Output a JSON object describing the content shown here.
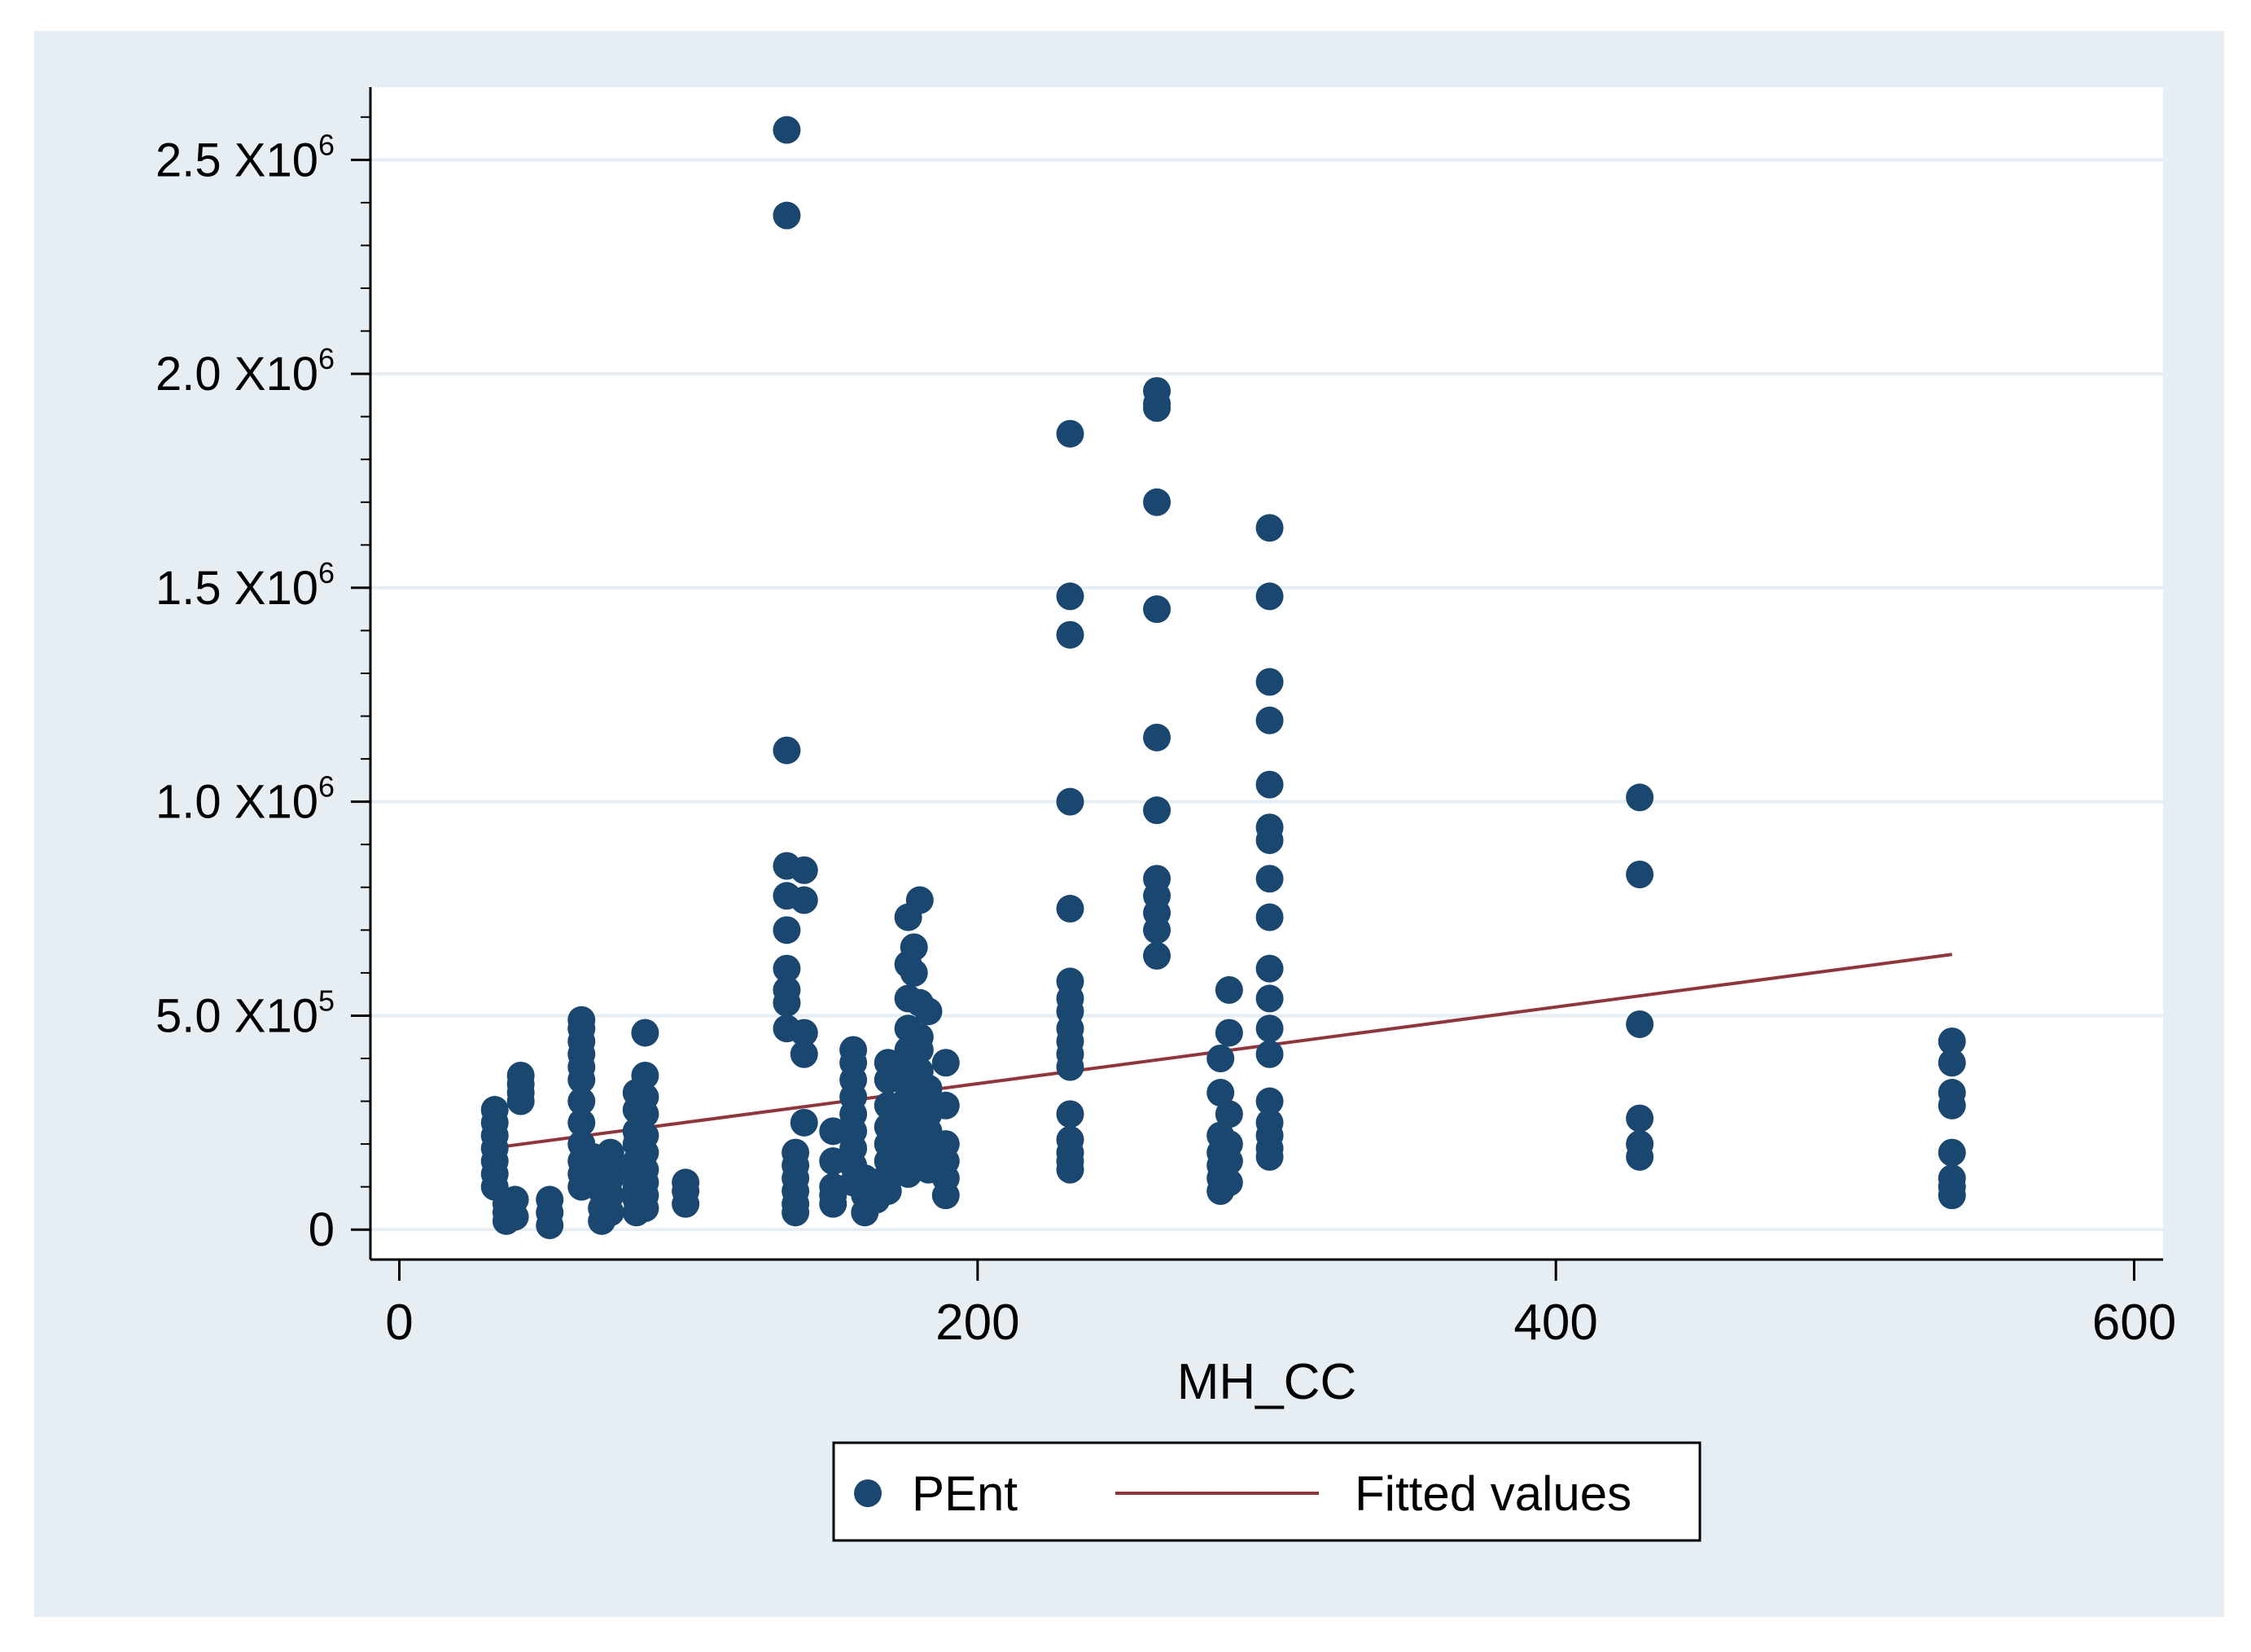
{
  "colors": {
    "outer_background": "#e7eef3",
    "plot_background": "#ffffff",
    "gridline": "#e7eef3",
    "marker": "#1a476f",
    "fitted_line": "#90353b",
    "axis": "#000000"
  },
  "chart_data": {
    "type": "scatter",
    "title": "",
    "xlabel": "MH_CC",
    "ylabel": "",
    "xlim": [
      -10,
      610
    ],
    "ylim": [
      -70000,
      2670000
    ],
    "grid": true,
    "legend_position": "bottom",
    "x_ticks": [
      {
        "value": 0,
        "label": "0"
      },
      {
        "value": 200,
        "label": "200"
      },
      {
        "value": 400,
        "label": "400"
      },
      {
        "value": 600,
        "label": "600"
      }
    ],
    "y_ticks": [
      {
        "value": 0,
        "label": "0",
        "exp": ""
      },
      {
        "value": 500000,
        "label": "5.0 X10",
        "exp": "5"
      },
      {
        "value": 1000000,
        "label": "1.0 X10",
        "exp": "6"
      },
      {
        "value": 1500000,
        "label": "1.5 X10",
        "exp": "6"
      },
      {
        "value": 2000000,
        "label": "2.0 X10",
        "exp": "6"
      },
      {
        "value": 2500000,
        "label": "2.5 X10",
        "exp": "6"
      }
    ],
    "y_minor_step": 100000,
    "legend": [
      {
        "name": "PEnt",
        "kind": "marker"
      },
      {
        "name": "Fitted values",
        "kind": "line"
      }
    ],
    "series": [
      {
        "name": "PEnt",
        "type": "scatter",
        "points": [
          [
            33,
            280000
          ],
          [
            33,
            250000
          ],
          [
            33,
            220000
          ],
          [
            33,
            190000
          ],
          [
            33,
            160000
          ],
          [
            33,
            130000
          ],
          [
            33,
            100000
          ],
          [
            37,
            60000
          ],
          [
            37,
            40000
          ],
          [
            37,
            20000
          ],
          [
            40,
            70000
          ],
          [
            40,
            30000
          ],
          [
            42,
            360000
          ],
          [
            42,
            340000
          ],
          [
            42,
            320000
          ],
          [
            42,
            300000
          ],
          [
            52,
            70000
          ],
          [
            52,
            40000
          ],
          [
            52,
            10000
          ],
          [
            63,
            490000
          ],
          [
            63,
            470000
          ],
          [
            63,
            440000
          ],
          [
            63,
            410000
          ],
          [
            63,
            380000
          ],
          [
            63,
            350000
          ],
          [
            63,
            300000
          ],
          [
            63,
            250000
          ],
          [
            63,
            200000
          ],
          [
            63,
            160000
          ],
          [
            63,
            130000
          ],
          [
            63,
            100000
          ],
          [
            67,
            170000
          ],
          [
            67,
            140000
          ],
          [
            67,
            110000
          ],
          [
            70,
            130000
          ],
          [
            70,
            90000
          ],
          [
            70,
            50000
          ],
          [
            70,
            20000
          ],
          [
            73,
            180000
          ],
          [
            73,
            150000
          ],
          [
            73,
            120000
          ],
          [
            73,
            80000
          ],
          [
            73,
            40000
          ],
          [
            82,
            320000
          ],
          [
            82,
            280000
          ],
          [
            82,
            230000
          ],
          [
            82,
            200000
          ],
          [
            82,
            160000
          ],
          [
            82,
            130000
          ],
          [
            82,
            100000
          ],
          [
            82,
            70000
          ],
          [
            82,
            40000
          ],
          [
            85,
            460000
          ],
          [
            85,
            360000
          ],
          [
            85,
            310000
          ],
          [
            85,
            270000
          ],
          [
            85,
            220000
          ],
          [
            85,
            180000
          ],
          [
            85,
            140000
          ],
          [
            85,
            110000
          ],
          [
            85,
            80000
          ],
          [
            85,
            50000
          ],
          [
            99,
            110000
          ],
          [
            99,
            90000
          ],
          [
            99,
            60000
          ],
          [
            134,
            2570000
          ],
          [
            134,
            2370000
          ],
          [
            134,
            1120000
          ],
          [
            134,
            850000
          ],
          [
            134,
            780000
          ],
          [
            134,
            700000
          ],
          [
            134,
            610000
          ],
          [
            134,
            560000
          ],
          [
            134,
            530000
          ],
          [
            134,
            470000
          ],
          [
            137,
            180000
          ],
          [
            137,
            150000
          ],
          [
            137,
            120000
          ],
          [
            137,
            90000
          ],
          [
            137,
            60000
          ],
          [
            137,
            40000
          ],
          [
            140,
            840000
          ],
          [
            140,
            770000
          ],
          [
            140,
            460000
          ],
          [
            140,
            410000
          ],
          [
            140,
            250000
          ],
          [
            150,
            230000
          ],
          [
            150,
            160000
          ],
          [
            150,
            100000
          ],
          [
            150,
            80000
          ],
          [
            150,
            60000
          ],
          [
            157,
            420000
          ],
          [
            157,
            390000
          ],
          [
            157,
            350000
          ],
          [
            157,
            310000
          ],
          [
            157,
            270000
          ],
          [
            157,
            230000
          ],
          [
            157,
            190000
          ],
          [
            157,
            150000
          ],
          [
            157,
            110000
          ],
          [
            161,
            120000
          ],
          [
            161,
            80000
          ],
          [
            161,
            40000
          ],
          [
            165,
            110000
          ],
          [
            165,
            70000
          ],
          [
            169,
            390000
          ],
          [
            169,
            350000
          ],
          [
            169,
            290000
          ],
          [
            169,
            240000
          ],
          [
            169,
            200000
          ],
          [
            169,
            160000
          ],
          [
            169,
            120000
          ],
          [
            169,
            90000
          ],
          [
            176,
            730000
          ],
          [
            176,
            620000
          ],
          [
            176,
            540000
          ],
          [
            176,
            470000
          ],
          [
            176,
            420000
          ],
          [
            176,
            360000
          ],
          [
            176,
            310000
          ],
          [
            176,
            260000
          ],
          [
            176,
            210000
          ],
          [
            176,
            170000
          ],
          [
            176,
            130000
          ],
          [
            178,
            660000
          ],
          [
            178,
            600000
          ],
          [
            178,
            430000
          ],
          [
            178,
            390000
          ],
          [
            178,
            340000
          ],
          [
            180,
            770000
          ],
          [
            180,
            530000
          ],
          [
            180,
            450000
          ],
          [
            180,
            420000
          ],
          [
            180,
            370000
          ],
          [
            180,
            290000
          ],
          [
            180,
            240000
          ],
          [
            180,
            200000
          ],
          [
            180,
            150000
          ],
          [
            183,
            510000
          ],
          [
            183,
            330000
          ],
          [
            183,
            270000
          ],
          [
            183,
            230000
          ],
          [
            183,
            180000
          ],
          [
            183,
            140000
          ],
          [
            189,
            390000
          ],
          [
            189,
            290000
          ],
          [
            189,
            200000
          ],
          [
            189,
            160000
          ],
          [
            189,
            120000
          ],
          [
            189,
            80000
          ],
          [
            232,
            1860000
          ],
          [
            232,
            1480000
          ],
          [
            232,
            1390000
          ],
          [
            232,
            1000000
          ],
          [
            232,
            750000
          ],
          [
            232,
            580000
          ],
          [
            232,
            540000
          ],
          [
            232,
            510000
          ],
          [
            232,
            470000
          ],
          [
            232,
            440000
          ],
          [
            232,
            410000
          ],
          [
            232,
            380000
          ],
          [
            232,
            270000
          ],
          [
            232,
            210000
          ],
          [
            232,
            180000
          ],
          [
            232,
            160000
          ],
          [
            232,
            140000
          ],
          [
            262,
            1960000
          ],
          [
            262,
            1930000
          ],
          [
            262,
            1920000
          ],
          [
            262,
            1700000
          ],
          [
            262,
            1450000
          ],
          [
            262,
            1150000
          ],
          [
            262,
            980000
          ],
          [
            262,
            820000
          ],
          [
            262,
            780000
          ],
          [
            262,
            740000
          ],
          [
            262,
            700000
          ],
          [
            262,
            640000
          ],
          [
            284,
            400000
          ],
          [
            284,
            320000
          ],
          [
            284,
            220000
          ],
          [
            284,
            180000
          ],
          [
            284,
            150000
          ],
          [
            284,
            120000
          ],
          [
            284,
            90000
          ],
          [
            287,
            560000
          ],
          [
            287,
            460000
          ],
          [
            287,
            270000
          ],
          [
            287,
            200000
          ],
          [
            287,
            160000
          ],
          [
            287,
            110000
          ],
          [
            301,
            1640000
          ],
          [
            301,
            1480000
          ],
          [
            301,
            1280000
          ],
          [
            301,
            1190000
          ],
          [
            301,
            1040000
          ],
          [
            301,
            940000
          ],
          [
            301,
            910000
          ],
          [
            301,
            820000
          ],
          [
            301,
            730000
          ],
          [
            301,
            610000
          ],
          [
            301,
            540000
          ],
          [
            301,
            470000
          ],
          [
            301,
            410000
          ],
          [
            301,
            300000
          ],
          [
            301,
            250000
          ],
          [
            301,
            220000
          ],
          [
            301,
            190000
          ],
          [
            301,
            170000
          ],
          [
            429,
            1010000
          ],
          [
            429,
            830000
          ],
          [
            429,
            480000
          ],
          [
            429,
            260000
          ],
          [
            429,
            200000
          ],
          [
            429,
            170000
          ],
          [
            537,
            440000
          ],
          [
            537,
            390000
          ],
          [
            537,
            320000
          ],
          [
            537,
            290000
          ],
          [
            537,
            180000
          ],
          [
            537,
            120000
          ],
          [
            537,
            100000
          ],
          [
            537,
            80000
          ]
        ]
      },
      {
        "name": "Fitted values",
        "type": "line",
        "points": [
          [
            37,
            195000
          ],
          [
            537,
            643000
          ]
        ]
      }
    ]
  }
}
